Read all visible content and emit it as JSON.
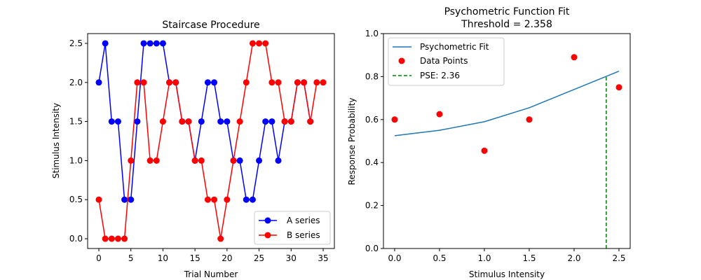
{
  "chart_data": [
    {
      "type": "line",
      "title": "Staircase Procedure",
      "xlabel": "Trial Number",
      "ylabel": "Stimulus Intensity",
      "xlim": [
        -1.75,
        36.75
      ],
      "ylim": [
        -0.125,
        2.625
      ],
      "xticks": [
        0,
        5,
        10,
        15,
        20,
        25,
        30,
        35
      ],
      "yticks": [
        0.0,
        0.5,
        1.0,
        1.5,
        2.0,
        2.5
      ],
      "legend_position": "lower-right",
      "series": [
        {
          "name": "A series",
          "color": "#0000ff",
          "x": [
            0,
            1,
            2,
            3,
            4,
            5,
            6,
            7,
            8,
            9,
            10,
            11,
            12,
            13,
            14,
            15,
            16,
            17,
            18,
            19,
            20,
            21,
            22,
            23,
            24,
            25,
            26,
            27,
            28,
            29,
            30,
            31,
            32,
            33
          ],
          "y": [
            2.0,
            2.5,
            1.5,
            1.5,
            0.5,
            0.5,
            1.5,
            2.5,
            2.5,
            2.5,
            2.5,
            2.0,
            2.0,
            1.5,
            1.5,
            1.0,
            1.5,
            2.0,
            2.0,
            1.5,
            1.5,
            1.0,
            1.0,
            0.5,
            0.5,
            1.0,
            1.5,
            1.5,
            1.0,
            1.5,
            1.5,
            2.0,
            2.0,
            1.5
          ]
        },
        {
          "name": "B series",
          "color": "#ff0000",
          "x": [
            0,
            1,
            2,
            3,
            4,
            5,
            6,
            7,
            8,
            9,
            10,
            11,
            12,
            13,
            14,
            15,
            16,
            17,
            18,
            19,
            20,
            21,
            22,
            23,
            24,
            25,
            26,
            27,
            28,
            29,
            30,
            31,
            32,
            33,
            34,
            35
          ],
          "y": [
            0.5,
            0.0,
            0.0,
            0.0,
            0.0,
            1.0,
            2.0,
            2.0,
            1.0,
            1.0,
            1.5,
            2.0,
            2.0,
            1.5,
            1.5,
            1.0,
            1.0,
            0.5,
            0.5,
            0.0,
            0.5,
            1.0,
            1.5,
            2.0,
            2.5,
            2.5,
            2.5,
            2.0,
            2.0,
            1.5,
            1.5,
            2.0,
            2.0,
            1.5,
            2.0,
            2.0
          ]
        }
      ]
    },
    {
      "type": "line",
      "title": "Psychometric Function Fit",
      "subtitle": "Threshold = 2.358",
      "xlabel": "Stimulus Intensity",
      "ylabel": "Response Probability",
      "xlim": [
        -0.125,
        2.625
      ],
      "ylim": [
        0.0,
        1.0
      ],
      "xticks": [
        0.0,
        0.5,
        1.0,
        1.5,
        2.0,
        2.5
      ],
      "yticks": [
        0.0,
        0.2,
        0.4,
        0.6,
        0.8,
        1.0
      ],
      "legend_position": "upper-left",
      "fit": {
        "name": "Psychometric Fit",
        "color": "#1f77b4",
        "x": [
          0.0,
          0.5,
          1.0,
          1.5,
          2.0,
          2.5
        ],
        "y": [
          0.525,
          0.55,
          0.59,
          0.655,
          0.74,
          0.825
        ]
      },
      "points": {
        "name": "Data Points",
        "color": "#ff0000",
        "x": [
          0.0,
          0.5,
          1.0,
          1.5,
          2.0,
          2.5
        ],
        "y": [
          0.6,
          0.625,
          0.455,
          0.6,
          0.89,
          0.75
        ]
      },
      "pse": {
        "name": "PSE: 2.36",
        "color": "#008000",
        "x": 2.358,
        "y": 0.8
      }
    }
  ]
}
